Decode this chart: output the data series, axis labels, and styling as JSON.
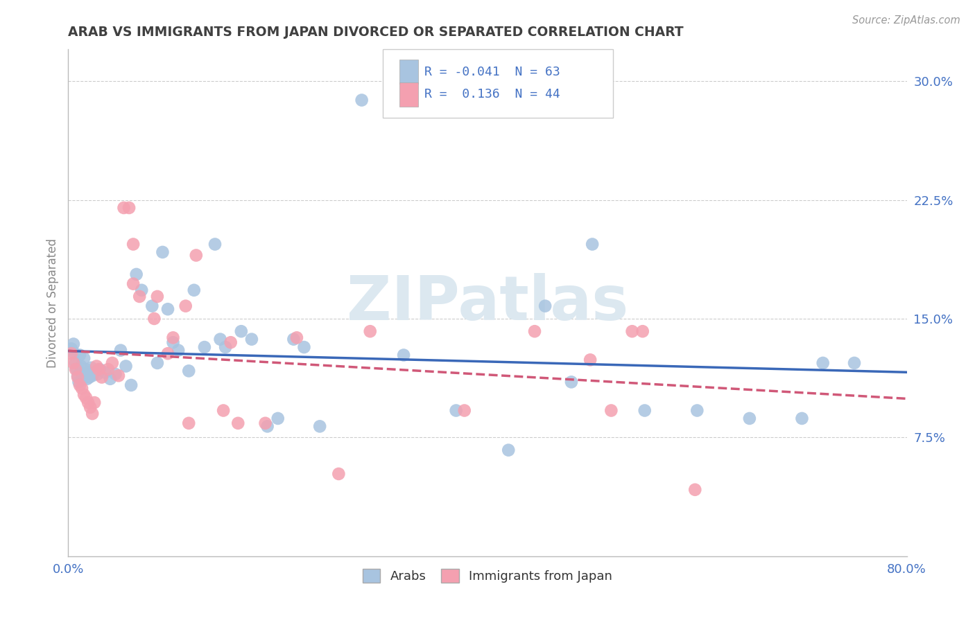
{
  "title": "ARAB VS IMMIGRANTS FROM JAPAN DIVORCED OR SEPARATED CORRELATION CHART",
  "source_text": "Source: ZipAtlas.com",
  "ylabel": "Divorced or Separated",
  "xlim": [
    0.0,
    0.8
  ],
  "ylim": [
    0.0,
    0.32
  ],
  "ytick_labels": [
    "7.5%",
    "15.0%",
    "22.5%",
    "30.0%"
  ],
  "ytick_values": [
    0.075,
    0.15,
    0.225,
    0.3
  ],
  "legend_label1": "Arabs",
  "legend_label2": "Immigrants from Japan",
  "R1": "-0.041",
  "N1": "63",
  "R2": "0.136",
  "N2": "44",
  "blue_color": "#a8c4e0",
  "pink_color": "#f4a0b0",
  "blue_line_color": "#3a68b8",
  "pink_line_color": "#d05878",
  "title_color": "#404040",
  "axis_color": "#4472c4",
  "watermark_color": "#dce8f0",
  "background_color": "#ffffff",
  "grid_color": "#cccccc",
  "blue_x": [
    0.003,
    0.005,
    0.006,
    0.007,
    0.008,
    0.009,
    0.01,
    0.011,
    0.012,
    0.013,
    0.014,
    0.015,
    0.016,
    0.017,
    0.018,
    0.019,
    0.02,
    0.021,
    0.022,
    0.023,
    0.025,
    0.028,
    0.03,
    0.035,
    0.04,
    0.045,
    0.05,
    0.055,
    0.06,
    0.065,
    0.07,
    0.08,
    0.085,
    0.09,
    0.095,
    0.1,
    0.105,
    0.115,
    0.12,
    0.13,
    0.14,
    0.145,
    0.15,
    0.165,
    0.175,
    0.19,
    0.2,
    0.215,
    0.225,
    0.24,
    0.28,
    0.32,
    0.37,
    0.42,
    0.455,
    0.48,
    0.5,
    0.55,
    0.6,
    0.65,
    0.7,
    0.72,
    0.75
  ],
  "blue_y": [
    0.131,
    0.134,
    0.128,
    0.122,
    0.118,
    0.114,
    0.11,
    0.127,
    0.12,
    0.116,
    0.112,
    0.125,
    0.115,
    0.118,
    0.112,
    0.116,
    0.113,
    0.115,
    0.119,
    0.114,
    0.116,
    0.115,
    0.118,
    0.116,
    0.112,
    0.115,
    0.13,
    0.12,
    0.108,
    0.178,
    0.168,
    0.158,
    0.122,
    0.192,
    0.156,
    0.135,
    0.13,
    0.117,
    0.168,
    0.132,
    0.197,
    0.137,
    0.132,
    0.142,
    0.137,
    0.082,
    0.087,
    0.137,
    0.132,
    0.082,
    0.288,
    0.127,
    0.092,
    0.067,
    0.158,
    0.11,
    0.197,
    0.092,
    0.092,
    0.087,
    0.087,
    0.122,
    0.122
  ],
  "pink_x": [
    0.003,
    0.005,
    0.007,
    0.009,
    0.011,
    0.013,
    0.015,
    0.017,
    0.019,
    0.021,
    0.023,
    0.025,
    0.027,
    0.029,
    0.032,
    0.038,
    0.042,
    0.048,
    0.053,
    0.058,
    0.062,
    0.068,
    0.085,
    0.095,
    0.1,
    0.112,
    0.122,
    0.148,
    0.155,
    0.188,
    0.218,
    0.258,
    0.288,
    0.378,
    0.445,
    0.498,
    0.518,
    0.538,
    0.548,
    0.598,
    0.062,
    0.082,
    0.115,
    0.162
  ],
  "pink_y": [
    0.128,
    0.122,
    0.118,
    0.113,
    0.108,
    0.106,
    0.102,
    0.1,
    0.097,
    0.094,
    0.09,
    0.097,
    0.12,
    0.118,
    0.113,
    0.118,
    0.122,
    0.114,
    0.22,
    0.22,
    0.172,
    0.164,
    0.164,
    0.128,
    0.138,
    0.158,
    0.19,
    0.092,
    0.135,
    0.084,
    0.138,
    0.052,
    0.142,
    0.092,
    0.142,
    0.124,
    0.092,
    0.142,
    0.142,
    0.042,
    0.197,
    0.15,
    0.084,
    0.084
  ]
}
